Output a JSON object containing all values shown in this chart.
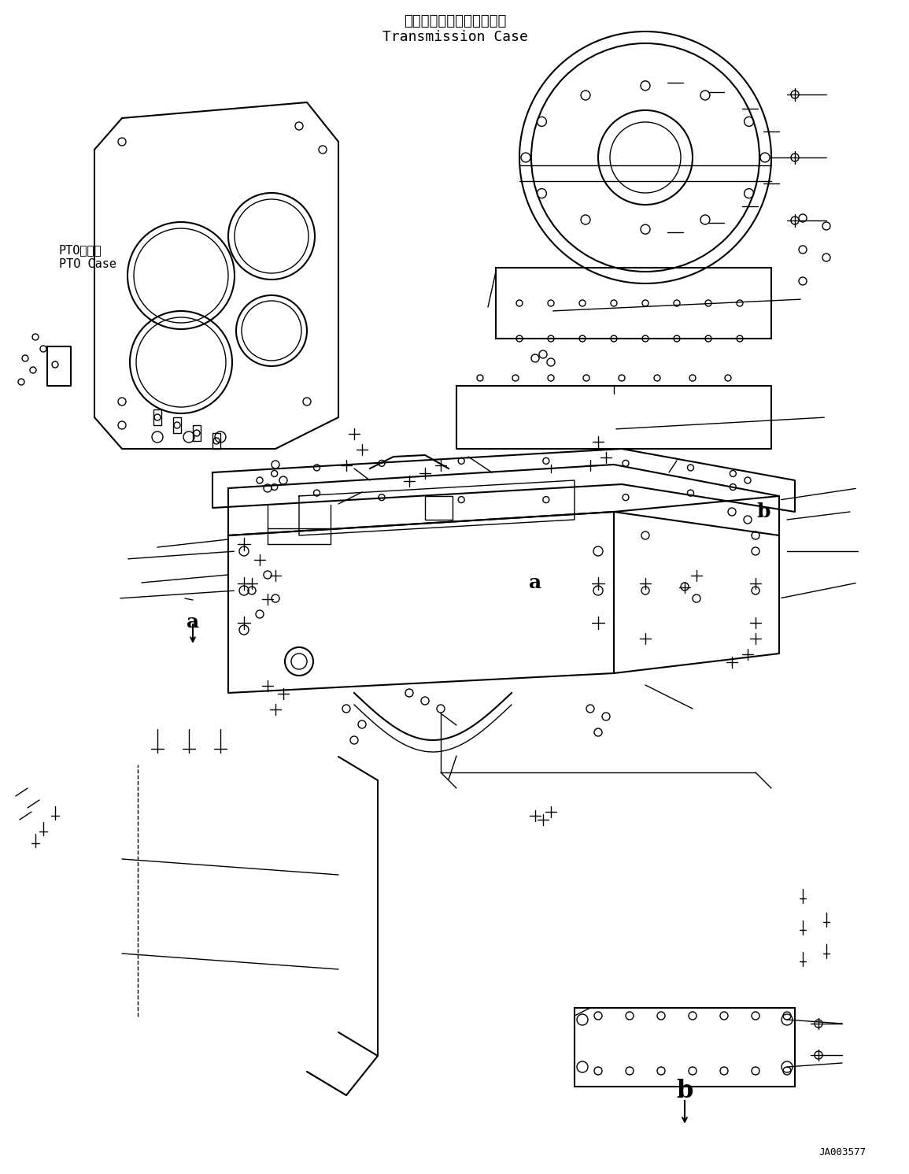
{
  "title_japanese": "トランスミッションケース",
  "title_english": "Transmission Case",
  "label_pto_jp": "PTOケース",
  "label_pto_en": "PTO Case",
  "label_a": "a",
  "label_b": "b",
  "label_code": "JA003577",
  "bg_color": "#ffffff",
  "line_color": "#000000",
  "title_fontsize": 13,
  "label_fontsize": 11,
  "code_fontsize": 9
}
